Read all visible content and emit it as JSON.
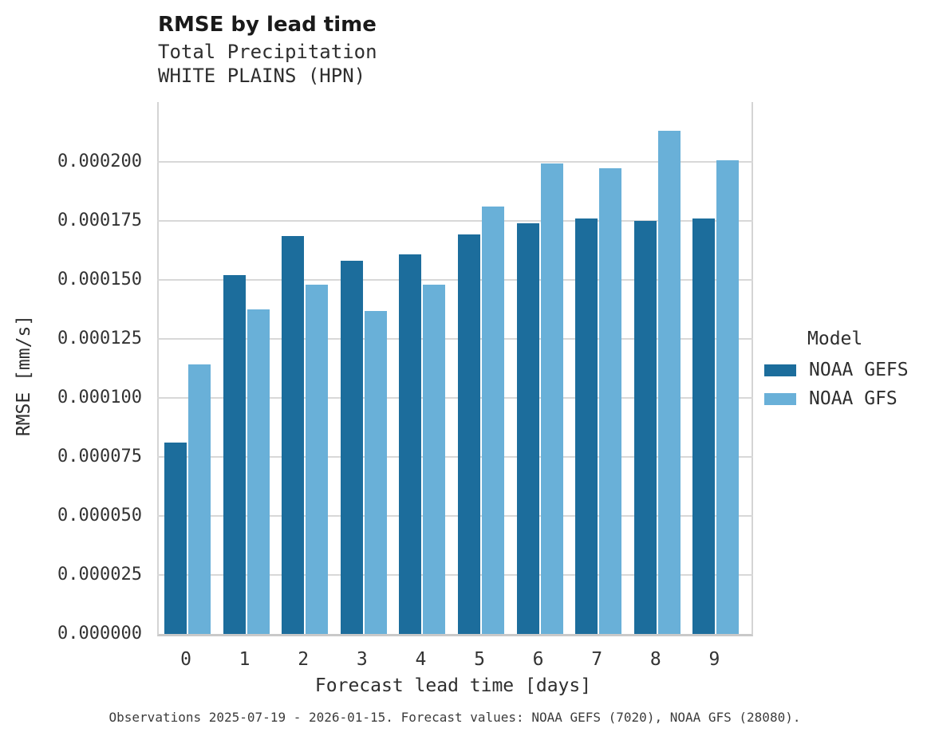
{
  "header": {
    "title": "RMSE by lead time",
    "subtitle_line1": "Total Precipitation",
    "subtitle_line2": "WHITE PLAINS (HPN)"
  },
  "chart_data": {
    "type": "bar",
    "title": "RMSE by lead time",
    "subtitle": [
      "Total Precipitation",
      "WHITE PLAINS (HPN)"
    ],
    "xlabel": "Forecast lead time [days]",
    "ylabel": "RMSE [mm/s]",
    "categories": [
      "0",
      "1",
      "2",
      "3",
      "4",
      "5",
      "6",
      "7",
      "8",
      "9"
    ],
    "series": [
      {
        "name": "NOAA GEFS",
        "color": "#1c6d9c",
        "values": [
          8.11e-05,
          0.0001521,
          0.0001686,
          0.0001581,
          0.0001608,
          0.0001693,
          0.000174,
          0.0001761,
          0.000175,
          0.0001761
        ]
      },
      {
        "name": "NOAA GFS",
        "color": "#69b0d8",
        "values": [
          0.0001142,
          0.0001375,
          0.000148,
          0.0001368,
          0.000148,
          0.0001811,
          0.0001993,
          0.0001973,
          0.0002132,
          0.0002007
        ]
      }
    ],
    "ylim": [
      0,
      0.000221
    ],
    "y_tick_interval": 2.5e-05,
    "y_tick_labels": [
      "0.000000",
      "0.000025",
      "0.000050",
      "0.000075",
      "0.000100",
      "0.000125",
      "0.000150",
      "0.000175",
      "0.000200"
    ],
    "grid": "horizontal",
    "legend_position": "right"
  },
  "legend": {
    "title": "Model"
  },
  "caption": "Observations 2025-07-19 - 2026-01-15. Forecast values: NOAA GEFS (7020), NOAA GFS (28080)."
}
